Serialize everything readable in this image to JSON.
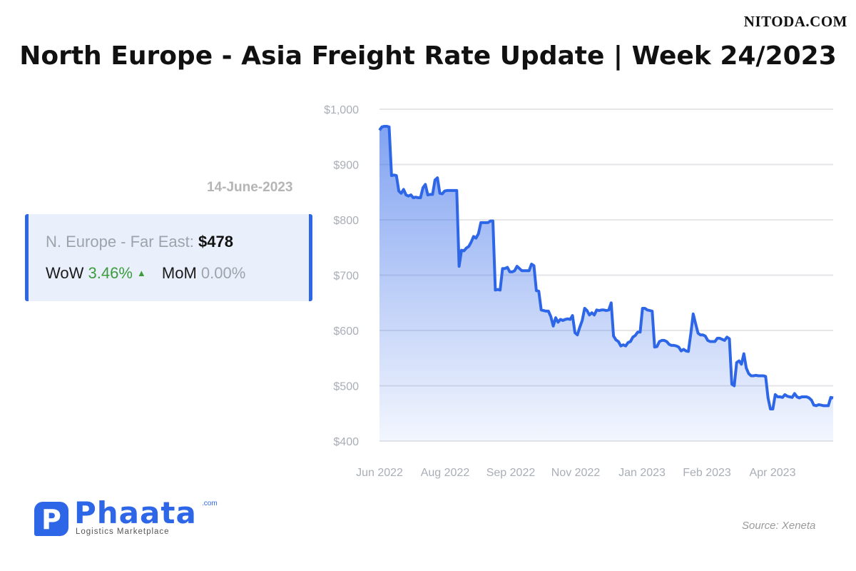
{
  "watermark": "NITODA.COM",
  "title": "North Europe - Asia Freight Rate Update | Week 24/2023",
  "date_label": "14-June-2023",
  "summary": {
    "route_label": "N. Europe - Far East:",
    "price": "$478",
    "wow_label": "WoW",
    "wow_value": "3.46%",
    "mom_label": "MoM",
    "mom_value": "0.00%",
    "colors": {
      "border": "#2e66e8",
      "wow": "#3d9b3d",
      "mom": "#9ea3ab"
    }
  },
  "brand": {
    "mark": "P",
    "name": "Phaata",
    "suffix": ".com",
    "tagline": "Logistics Marketplace",
    "color": "#2e66e8"
  },
  "source": "Source: Xeneta",
  "chart_data": {
    "type": "area",
    "title": "",
    "xlabel": "",
    "ylabel": "",
    "ylim": [
      400,
      1000
    ],
    "y_ticks": [
      {
        "value": 1000,
        "label": "$1,000"
      },
      {
        "value": 900,
        "label": "$900"
      },
      {
        "value": 800,
        "label": "$800"
      },
      {
        "value": 700,
        "label": "$700"
      },
      {
        "value": 600,
        "label": "$600"
      },
      {
        "value": 500,
        "label": "$500"
      },
      {
        "value": 400,
        "label": "$400"
      }
    ],
    "x_ticks": [
      "Jun 2022",
      "Aug 2022",
      "Sep 2022",
      "Nov 2022",
      "Jan 2023",
      "Feb 2023",
      "Apr 2023"
    ],
    "grid": true,
    "line_color": "#2e66e8",
    "fill_color": "#2e66e8",
    "series": [
      {
        "values": [
          962,
          968,
          969,
          969,
          968,
          880,
          881,
          880,
          852,
          848,
          855,
          845,
          843,
          845,
          840,
          841,
          840,
          840,
          858,
          864,
          845,
          846,
          846,
          872,
          876,
          848,
          847,
          852,
          853,
          853,
          853,
          853,
          853,
          716,
          745,
          744,
          749,
          752,
          760,
          770,
          767,
          775,
          795,
          795,
          795,
          795,
          798,
          798,
          673,
          674,
          673,
          712,
          712,
          714,
          706,
          706,
          708,
          716,
          712,
          708,
          708,
          708,
          708,
          720,
          717,
          672,
          671,
          637,
          636,
          635,
          635,
          625,
          608,
          623,
          615,
          620,
          618,
          620,
          621,
          620,
          627,
          596,
          592,
          606,
          618,
          640,
          636,
          628,
          632,
          628,
          637,
          636,
          637,
          637,
          636,
          637,
          650,
          590,
          583,
          580,
          572,
          574,
          572,
          578,
          580,
          588,
          591,
          597,
          597,
          640,
          640,
          637,
          636,
          635,
          570,
          571,
          580,
          582,
          582,
          580,
          575,
          573,
          573,
          572,
          570,
          563,
          566,
          563,
          562,
          594,
          630,
          612,
          595,
          592,
          592,
          590,
          582,
          580,
          580,
          580,
          586,
          586,
          584,
          582,
          588,
          585,
          503,
          500,
          542,
          545,
          539,
          558,
          532,
          522,
          518,
          518,
          519,
          518,
          518,
          518,
          517,
          478,
          458,
          458,
          484,
          480,
          480,
          479,
          484,
          481,
          480,
          479,
          486,
          480,
          478,
          480,
          480,
          480,
          478,
          474,
          465,
          464,
          466,
          465,
          464,
          464,
          464,
          479,
          478
        ]
      }
    ]
  }
}
